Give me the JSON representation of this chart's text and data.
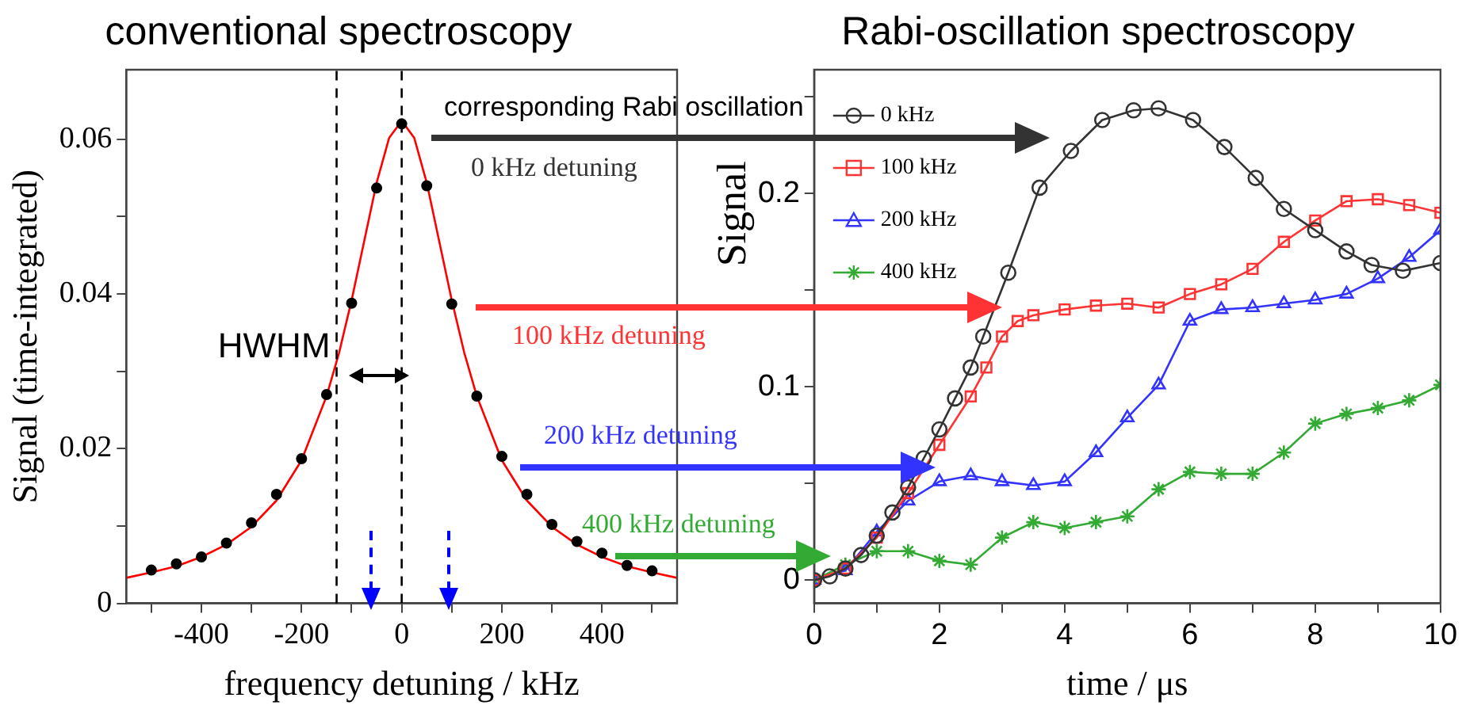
{
  "chart_data": [
    {
      "type": "scatter",
      "title": "conventional spectroscopy",
      "xlabel": "frequency detuning / kHz",
      "ylabel": "Signal (time-integrated)",
      "xlim": [
        -550,
        550
      ],
      "xticks": [
        {
          "value": -500,
          "label": null
        },
        -400,
        {
          "value": -300,
          "label": null
        },
        -200,
        {
          "value": -100,
          "label": null
        },
        0,
        {
          "value": 100,
          "label": null
        },
        200,
        {
          "value": 300,
          "label": null
        },
        400,
        {
          "value": 500,
          "label": null
        }
      ],
      "ylim": [
        0,
        0.069
      ],
      "yticks": [
        0,
        {
          "value": 0.01,
          "label": null
        },
        0.02,
        {
          "value": 0.03,
          "label": null
        },
        0.04,
        {
          "value": 0.05,
          "label": null
        },
        0.06
      ],
      "grid": false,
      "legend": false,
      "series": [
        {
          "type": "scatter",
          "marker": "circle",
          "color": "#000000",
          "x": [
            -500,
            -450,
            -400,
            -350,
            -300,
            -250,
            -200,
            -150,
            -100,
            -50,
            0,
            50,
            100,
            150,
            200,
            250,
            300,
            350,
            400,
            450,
            500
          ],
          "values": [
            0.0043,
            0.0051,
            0.006,
            0.0078,
            0.0104,
            0.0141,
            0.0187,
            0.027,
            0.0388,
            0.0537,
            0.062,
            0.054,
            0.0387,
            0.0268,
            0.019,
            0.0141,
            0.0102,
            0.008,
            0.0065,
            0.0049,
            0.0042
          ]
        },
        {
          "type": "line",
          "marker": "none",
          "color": "#ff0000",
          "x": [
            -550,
            -500,
            -450,
            -400,
            -350,
            -300,
            -250,
            -200,
            -150,
            -125,
            -100,
            -75,
            -50,
            -25,
            0,
            25,
            50,
            75,
            100,
            125,
            150,
            200,
            250,
            300,
            350,
            400,
            450,
            500,
            550
          ],
          "values": [
            0.0033,
            0.004,
            0.0048,
            0.006,
            0.0076,
            0.0099,
            0.0133,
            0.0185,
            0.0268,
            0.0324,
            0.0392,
            0.0468,
            0.0544,
            0.0602,
            0.0624,
            0.0602,
            0.0544,
            0.0468,
            0.0392,
            0.0324,
            0.0268,
            0.0185,
            0.0133,
            0.0099,
            0.0076,
            0.006,
            0.0048,
            0.004,
            0.0033
          ]
        }
      ],
      "ref_lines": [
        {
          "axis": "x",
          "value": -130,
          "line_style": "dashed",
          "color": "#000000"
        },
        {
          "axis": "x",
          "value": 0,
          "line_style": "dashed",
          "color": "#000000"
        }
      ],
      "annotations": [
        "corresponding Rabi oscillation",
        "0 kHz detuning",
        "100 kHz detuning",
        "200 kHz detuning",
        "400 kHz detuning",
        {
          "text": "HWHM",
          "x": -130,
          "y": 0.03
        }
      ]
    },
    {
      "type": "line",
      "title": "Rabi-oscillation spectroscopy",
      "xlabel": "time / μs",
      "ylabel": "Signal",
      "xlim": [
        0,
        10
      ],
      "xticks": [
        0,
        {
          "value": 1,
          "label": null
        },
        2,
        {
          "value": 3,
          "label": null
        },
        4,
        {
          "value": 5,
          "label": null
        },
        6,
        {
          "value": 7,
          "label": null
        },
        8,
        {
          "value": 9,
          "label": null
        },
        10
      ],
      "ylim": [
        -0.012,
        0.264
      ],
      "yticks": [
        0,
        {
          "value": 0.05,
          "label": null
        },
        0.1,
        {
          "value": 0.15,
          "label": null
        },
        0.2,
        {
          "value": 0.25,
          "label": null
        }
      ],
      "grid": false,
      "legend": "top left",
      "series": [
        {
          "name": "0 kHz",
          "marker": "circle",
          "color": "#333333",
          "x": [
            0,
            0.25,
            0.5,
            0.75,
            1,
            1.25,
            1.5,
            1.75,
            2,
            2.25,
            2.5,
            2.7,
            3.1,
            3.6,
            4.1,
            4.6,
            5.1,
            5.5,
            6.05,
            6.55,
            7.05,
            7.5,
            8,
            8.5,
            8.9,
            9.4,
            10
          ],
          "values": [
            0,
            0.002,
            0.006,
            0.013,
            0.023,
            0.035,
            0.048,
            0.063,
            0.078,
            0.094,
            0.11,
            0.126,
            0.159,
            0.203,
            0.222,
            0.238,
            0.243,
            0.244,
            0.238,
            0.224,
            0.208,
            0.192,
            0.181,
            0.17,
            0.163,
            0.16,
            0.164
          ]
        },
        {
          "name": "100 kHz",
          "marker": "square",
          "color": "#ff3333",
          "x": [
            0,
            0.5,
            1,
            1.5,
            2,
            2.5,
            2.75,
            3,
            3.25,
            3.5,
            4,
            4.5,
            5,
            5.5,
            6,
            6.5,
            7,
            7.5,
            8,
            8.5,
            9,
            9.5,
            10
          ],
          "values": [
            0,
            0.006,
            0.022,
            0.045,
            0.07,
            0.095,
            0.11,
            0.126,
            0.134,
            0.137,
            0.14,
            0.142,
            0.143,
            0.141,
            0.148,
            0.153,
            0.161,
            0.175,
            0.186,
            0.196,
            0.197,
            0.194,
            0.19
          ]
        },
        {
          "name": "200 kHz",
          "marker": "triangle",
          "color": "#3333ff",
          "x": [
            0,
            0.5,
            1,
            1.5,
            2,
            2.5,
            3,
            3.5,
            4,
            4.5,
            5,
            5.5,
            6,
            6.5,
            7,
            7.5,
            8,
            8.5,
            9,
            9.5,
            10
          ],
          "values": [
            0,
            0.005,
            0.025,
            0.041,
            0.051,
            0.054,
            0.051,
            0.049,
            0.051,
            0.066,
            0.084,
            0.101,
            0.134,
            0.14,
            0.141,
            0.143,
            0.145,
            0.148,
            0.156,
            0.167,
            0.181
          ]
        },
        {
          "name": "400 kHz",
          "marker": "cross",
          "color": "#33aa33",
          "x": [
            0,
            0.5,
            1,
            1.5,
            2,
            2.5,
            3,
            3.5,
            4,
            4.5,
            5,
            5.5,
            6,
            6.5,
            7,
            7.5,
            8,
            8.5,
            9,
            9.5,
            10
          ],
          "values": [
            0,
            0.008,
            0.015,
            0.015,
            0.01,
            0.008,
            0.022,
            0.03,
            0.027,
            0.03,
            0.033,
            0.047,
            0.056,
            0.055,
            0.055,
            0.066,
            0.081,
            0.086,
            0.089,
            0.093,
            0.101
          ]
        }
      ]
    }
  ]
}
